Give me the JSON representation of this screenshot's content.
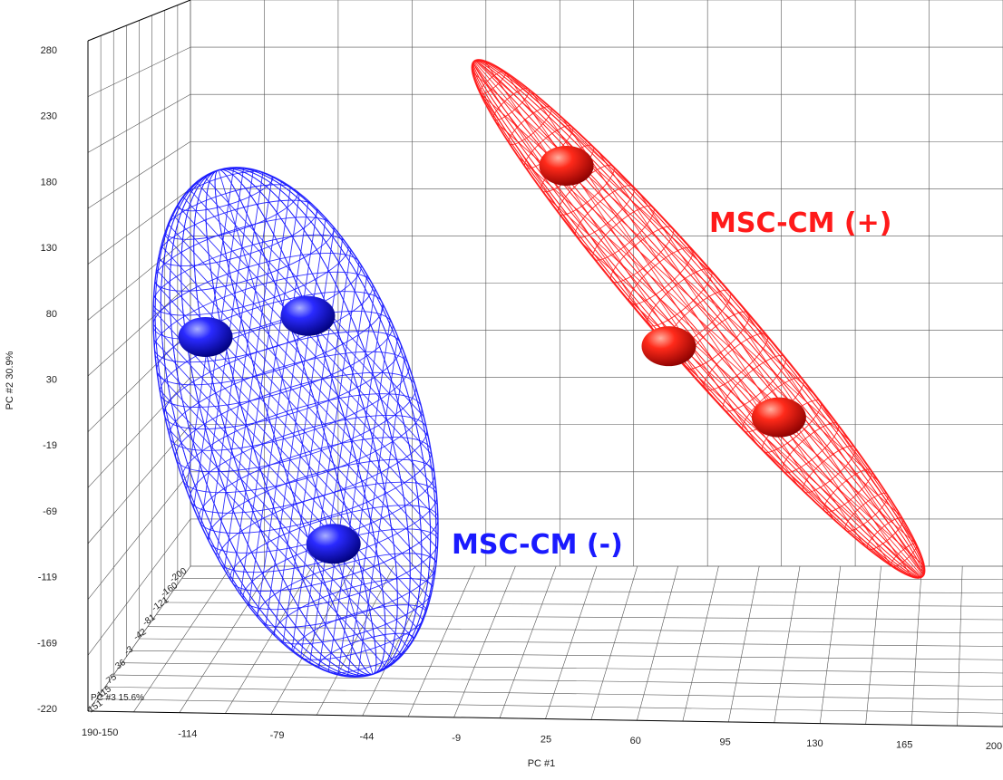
{
  "chart_data": {
    "type": "scatter",
    "projection": "3d",
    "xlabel": "PC #1",
    "ylabel": "PC #2 30.9%",
    "zlabel": "PC #3 15.6%",
    "x_ticks": [
      "190-150",
      "-114",
      "-79",
      "-44",
      "-9",
      "25",
      "60",
      "95",
      "130",
      "165",
      "200"
    ],
    "y_ticks": [
      "280",
      "230",
      "180",
      "130",
      "80",
      "30",
      "-19",
      "-69",
      "-119",
      "-169",
      "-220"
    ],
    "z_ticks": [
      "-200",
      "-160",
      "-121",
      "-81",
      "-42",
      "-3",
      "36",
      "75",
      "115",
      "151"
    ],
    "xlim": [
      -150,
      200
    ],
    "ylim": [
      -220,
      280
    ],
    "grid": true,
    "series": [
      {
        "name": "MSC-CM (-)",
        "color": "#1a1aff",
        "points": [
          {
            "x": -108,
            "y": 62
          },
          {
            "x": -68,
            "y": 78
          },
          {
            "x": -58,
            "y": -95
          }
        ]
      },
      {
        "name": "MSC-CM (+)",
        "color": "#ff1a1a",
        "points": [
          {
            "x": 33,
            "y": 192
          },
          {
            "x": 73,
            "y": 55
          },
          {
            "x": 116,
            "y": 1
          }
        ]
      }
    ]
  }
}
